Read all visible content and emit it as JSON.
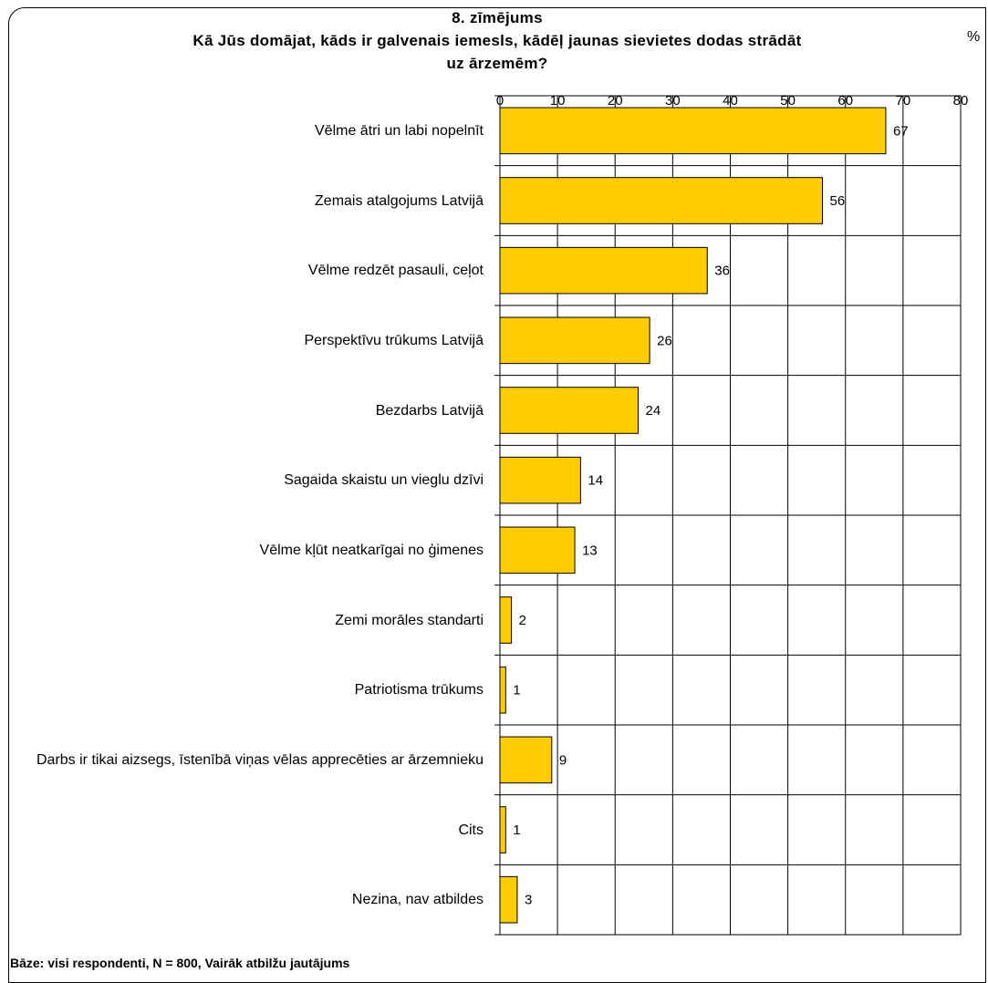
{
  "chart_data": {
    "type": "bar",
    "orientation": "horizontal",
    "title_lines": [
      "8. zīmējums",
      "Kā Jūs domājat, kāds ir galvenais iemesls, kādēļ jaunas sievietes dodas strādāt",
      "uz ārzemēm?"
    ],
    "unit": "%",
    "xlim": [
      0,
      80
    ],
    "ticks": [
      0,
      10,
      20,
      30,
      40,
      50,
      60,
      70,
      80
    ],
    "grid": true,
    "bar_color": "#FFCC00",
    "categories": [
      "Vēlme ātri un labi nopelnīt",
      "Zemais atalgojums Latvijā",
      "Vēlme redzēt pasauli, ceļot",
      "Perspektīvu trūkums Latvijā",
      "Bezdarbs Latvijā",
      "Sagaida skaistu un vieglu dzīvi",
      "Vēlme kļūt neatkarīgai no ģimenes",
      "Zemi morāles standarti",
      "Patriotisma trūkums",
      "Darbs ir tikai aizsegs, īstenībā viņas vēlas apprecēties ar ārzemnieku",
      "Cits",
      "Nezina, nav atbildes"
    ],
    "values": [
      67,
      56,
      36,
      26,
      24,
      14,
      13,
      2,
      1,
      9,
      1,
      3
    ]
  },
  "footnote": "Bāze: visi respondenti, N = 800, Vairāk atbilžu jautājums"
}
